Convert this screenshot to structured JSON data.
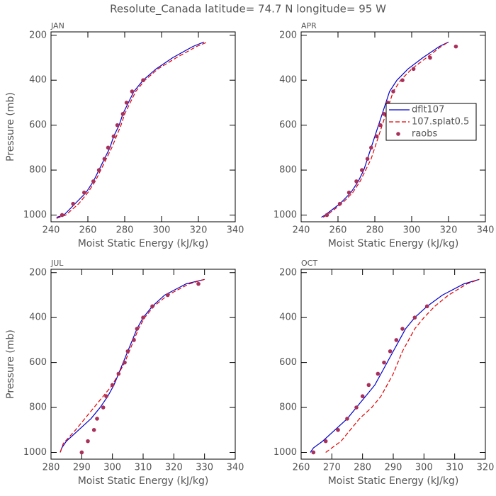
{
  "title": "Resolute_Canada  latitude= 74.7 N longitude= 95 W",
  "chart_data": [
    {
      "type": "line",
      "title": "JAN",
      "xlabel": "Moist Static Energy (kJ/kg)",
      "ylabel": "Pressure (mb)",
      "xlim": [
        240,
        340
      ],
      "xticks": [
        240,
        260,
        280,
        300,
        320,
        340
      ],
      "ylim": [
        1030,
        185
      ],
      "yticks": [
        200,
        400,
        600,
        800,
        1000
      ],
      "series": [
        {
          "name": "dflt107",
          "color": "#0000cc",
          "style": "solid",
          "x": [
            243,
            247,
            253,
            259,
            263,
            266,
            269,
            272,
            274,
            277,
            279,
            282,
            285,
            290,
            297,
            306,
            317,
            323
          ],
          "values": [
            1010,
            1000,
            950,
            900,
            850,
            800,
            750,
            700,
            650,
            600,
            550,
            500,
            450,
            400,
            350,
            300,
            250,
            230
          ]
        },
        {
          "name": "107.splat0.5",
          "color": "#e00000",
          "style": "dashed",
          "x": [
            243,
            248,
            255,
            260,
            264,
            267,
            270,
            273,
            275.5,
            278,
            280,
            283,
            286,
            291,
            298,
            308,
            319,
            325
          ],
          "values": [
            1015,
            1000,
            950,
            900,
            850,
            800,
            750,
            700,
            650,
            600,
            550,
            500,
            450,
            400,
            350,
            300,
            250,
            230
          ]
        },
        {
          "name": "raobs",
          "color": "#a8305a",
          "style": "markers",
          "x": [
            246,
            252,
            258,
            263,
            266,
            269,
            271,
            274,
            276,
            279,
            281,
            284,
            290
          ],
          "values": [
            1000,
            950,
            900,
            850,
            800,
            750,
            700,
            650,
            600,
            550,
            500,
            450,
            400
          ]
        }
      ]
    },
    {
      "type": "line",
      "title": "APR",
      "xlabel": "Moist Static Energy (kJ/kg)",
      "legend": "center-right",
      "xlim": [
        240,
        340
      ],
      "xticks": [
        240,
        260,
        280,
        300,
        320,
        340
      ],
      "ylim": [
        1030,
        185
      ],
      "yticks": [
        200,
        400,
        600,
        800,
        1000
      ],
      "series": [
        {
          "name": "dflt107",
          "color": "#0000cc",
          "style": "solid",
          "x": [
            251,
            253,
            261,
            267,
            271,
            274,
            276,
            278,
            280,
            282,
            284,
            286,
            288,
            292,
            298,
            306,
            315,
            320
          ],
          "values": [
            1010,
            1000,
            950,
            900,
            850,
            800,
            750,
            700,
            650,
            600,
            550,
            500,
            450,
            400,
            350,
            300,
            250,
            230
          ]
        },
        {
          "name": "107.splat0.5",
          "color": "#e00000",
          "style": "dashed",
          "x": [
            252,
            254,
            262,
            268,
            272,
            275,
            278,
            280,
            282,
            284,
            286,
            288,
            290,
            294,
            300,
            308,
            316,
            320
          ],
          "values": [
            1010,
            1000,
            950,
            900,
            850,
            800,
            750,
            700,
            650,
            600,
            550,
            500,
            450,
            400,
            350,
            300,
            250,
            230
          ]
        },
        {
          "name": "raobs",
          "color": "#a8305a",
          "style": "markers",
          "x": [
            254,
            261,
            266,
            270,
            273,
            276,
            278,
            281,
            283,
            285,
            287,
            290,
            295,
            301,
            310,
            324
          ],
          "values": [
            1000,
            950,
            900,
            850,
            800,
            750,
            700,
            650,
            600,
            550,
            500,
            450,
            400,
            350,
            300,
            250
          ]
        }
      ]
    },
    {
      "type": "line",
      "title": "JUL",
      "xlabel": "Moist Static Energy (kJ/kg)",
      "ylabel": "Pressure (mb)",
      "xlim": [
        280,
        340
      ],
      "xticks": [
        280,
        290,
        300,
        310,
        320,
        330,
        340
      ],
      "ylim": [
        1030,
        185
      ],
      "yticks": [
        200,
        400,
        600,
        800,
        1000
      ],
      "series": [
        {
          "name": "dflt107",
          "color": "#0000cc",
          "style": "solid",
          "x": [
            283,
            283.5,
            285,
            289,
            293,
            296,
            298.5,
            300.5,
            302,
            303.5,
            305,
            306.5,
            308,
            310,
            313,
            317,
            324,
            330
          ],
          "values": [
            1000,
            980,
            950,
            900,
            850,
            800,
            750,
            700,
            650,
            600,
            550,
            500,
            450,
            400,
            350,
            300,
            250,
            230
          ]
        },
        {
          "name": "107.splat0.5",
          "color": "#e00000",
          "style": "dashed",
          "x": [
            283,
            284,
            286,
            288,
            291,
            294,
            297,
            300,
            302,
            304,
            305.5,
            307,
            308.5,
            310.5,
            313.5,
            318,
            325,
            330
          ],
          "values": [
            1000,
            960,
            930,
            900,
            850,
            800,
            750,
            700,
            650,
            600,
            550,
            500,
            450,
            400,
            350,
            300,
            250,
            230
          ]
        },
        {
          "name": "raobs",
          "color": "#a8305a",
          "style": "markers",
          "x": [
            290,
            292,
            294,
            295,
            297,
            298,
            300,
            302,
            304,
            305,
            307,
            308,
            310,
            313,
            318,
            328
          ],
          "values": [
            1000,
            950,
            900,
            850,
            800,
            750,
            700,
            650,
            600,
            550,
            500,
            450,
            400,
            350,
            300,
            250
          ]
        }
      ]
    },
    {
      "type": "line",
      "title": "OCT",
      "xlabel": "Moist Static Energy (kJ/kg)",
      "xlim": [
        260,
        320
      ],
      "xticks": [
        260,
        270,
        280,
        290,
        300,
        310,
        320
      ],
      "ylim": [
        1030,
        185
      ],
      "yticks": [
        200,
        400,
        600,
        800,
        1000
      ],
      "series": [
        {
          "name": "dflt107",
          "color": "#0000cc",
          "style": "solid",
          "x": [
            263,
            264,
            267,
            271,
            275,
            278,
            281,
            284,
            286,
            288,
            290,
            292,
            294,
            297,
            301,
            306,
            313,
            318
          ],
          "values": [
            1000,
            980,
            950,
            900,
            850,
            800,
            750,
            700,
            650,
            600,
            550,
            500,
            450,
            400,
            350,
            300,
            250,
            230
          ]
        },
        {
          "name": "107.splat0.5",
          "color": "#e00000",
          "style": "dashed",
          "x": [
            268,
            270,
            273,
            276,
            279,
            283,
            286,
            288,
            290,
            291.5,
            293,
            295,
            297,
            300,
            303.5,
            308,
            314,
            318
          ],
          "values": [
            1000,
            980,
            950,
            900,
            850,
            800,
            750,
            700,
            650,
            600,
            550,
            500,
            450,
            400,
            350,
            300,
            250,
            230
          ]
        },
        {
          "name": "raobs",
          "color": "#a8305a",
          "style": "markers",
          "x": [
            264,
            268,
            272,
            275,
            278,
            280,
            282,
            285,
            287,
            289,
            291,
            293,
            297,
            301
          ],
          "values": [
            1000,
            950,
            900,
            850,
            800,
            750,
            700,
            650,
            600,
            550,
            500,
            450,
            400,
            350
          ]
        }
      ]
    }
  ]
}
